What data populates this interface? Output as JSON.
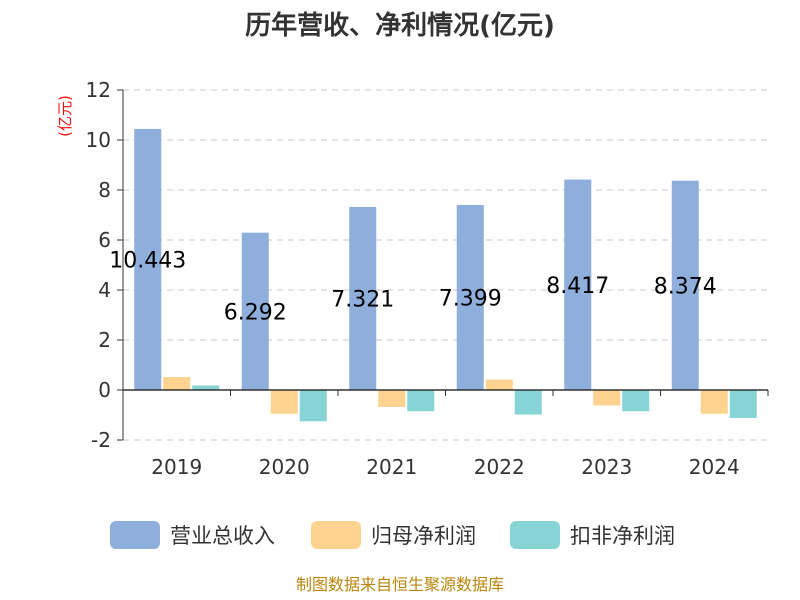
{
  "chart_data": {
    "type": "bar",
    "title": "历年营收、净利情况(亿元)",
    "unit_label": "(亿元)",
    "categories": [
      "2019",
      "2020",
      "2021",
      "2022",
      "2023",
      "2024"
    ],
    "series": [
      {
        "name": "营业总收入",
        "color": "#8eaedb",
        "values": [
          10.443,
          6.292,
          7.321,
          7.399,
          8.417,
          8.374
        ]
      },
      {
        "name": "归母净利润",
        "color": "#fed38f",
        "values": [
          0.52,
          -0.95,
          -0.68,
          0.42,
          -0.62,
          -0.95
        ]
      },
      {
        "name": "扣非净利润",
        "color": "#87d4d6",
        "values": [
          0.18,
          -1.25,
          -0.85,
          -0.98,
          -0.85,
          -1.12
        ]
      }
    ],
    "data_labels": [
      "10.443",
      "6.292",
      "7.321",
      "7.399",
      "8.417",
      "8.374"
    ],
    "yticks": [
      "12",
      "10",
      "8",
      "6",
      "4",
      "2",
      "0",
      "-2"
    ],
    "ylim": [
      -2,
      12
    ],
    "grid": true,
    "legend_position": "bottom"
  },
  "source": "制图数据来自恒生聚源数据库"
}
